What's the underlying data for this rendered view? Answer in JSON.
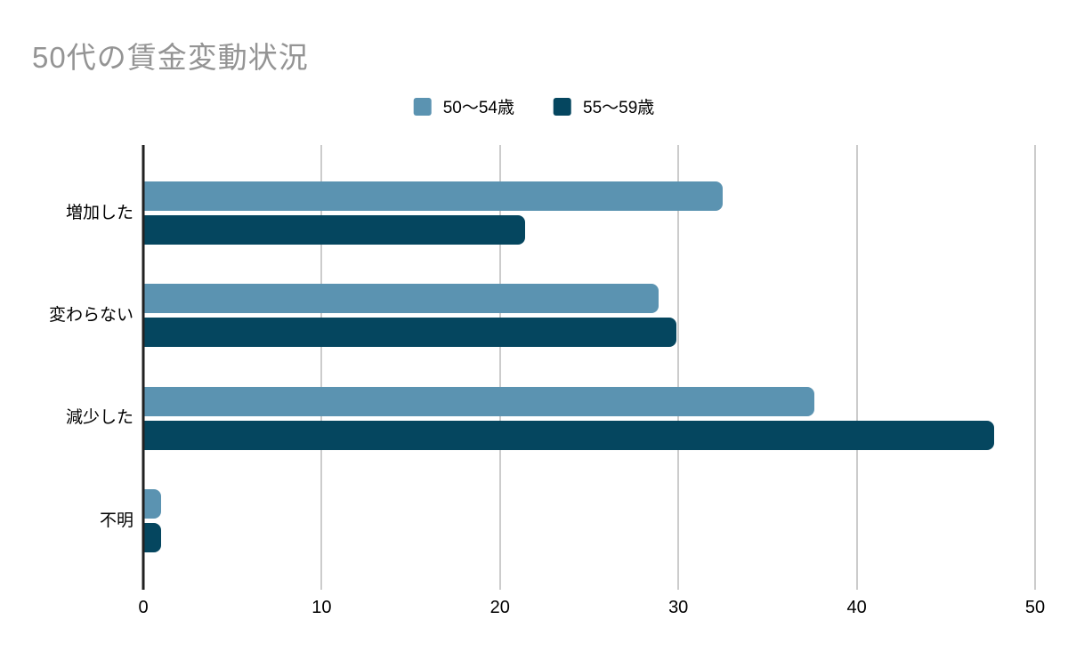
{
  "title": "50代の賃金変動状況",
  "colors": {
    "series1": "#5b93b1",
    "series2": "#05465f",
    "gridline": "#cccccc",
    "axis": "#212121",
    "title_text": "#949494",
    "label_text": "#000000",
    "background": "#ffffff"
  },
  "chart_data": {
    "type": "bar",
    "orientation": "horizontal",
    "title": "50代の賃金変動状況",
    "categories": [
      "増加した",
      "変わらない",
      "減少した",
      "不明"
    ],
    "series": [
      {
        "name": "50〜54歳",
        "color": "#5b93b1",
        "values": [
          32.5,
          28.9,
          37.6,
          1.0
        ]
      },
      {
        "name": "55〜59歳",
        "color": "#05465f",
        "values": [
          21.4,
          29.9,
          47.7,
          1.0
        ]
      }
    ],
    "xlabel": "",
    "ylabel": "",
    "xlim": [
      0,
      50
    ],
    "xticks": [
      0,
      10,
      20,
      30,
      40,
      50
    ],
    "grid": true,
    "legend_position": "top-center"
  }
}
